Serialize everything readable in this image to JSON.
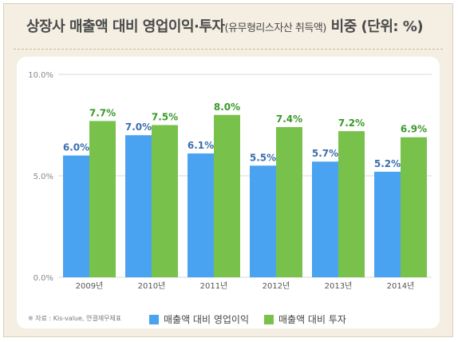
{
  "title": {
    "main": "상장사 매출액 대비 영업이익·투자",
    "paren": "(유무형리스자산 취득액)",
    "tail": " 비중 (단위: %)"
  },
  "colors": {
    "background": "#f4efe2",
    "series_operating": "#4aa3f0",
    "series_investment": "#78c24b",
    "label_operating": "#3c6fb0",
    "label_investment": "#3a9a2a"
  },
  "legend": {
    "note": "※ 자료 : Kis-value, 연결재무제표",
    "items": [
      "매출액 대비 영업이익",
      "매출액 대비 투자"
    ]
  },
  "chart_data": {
    "type": "bar",
    "categories": [
      "2009년",
      "2010년",
      "2011년",
      "2012년",
      "2013년",
      "2014년"
    ],
    "series": [
      {
        "name": "매출액 대비 영업이익",
        "values": [
          6.0,
          7.0,
          6.1,
          5.5,
          5.7,
          5.2
        ]
      },
      {
        "name": "매출액 대비 투자",
        "values": [
          7.7,
          7.5,
          8.0,
          7.4,
          7.2,
          6.9
        ]
      }
    ],
    "data_labels": [
      [
        "6.0%",
        "7.0%",
        "6.1%",
        "5.5%",
        "5.7%",
        "5.2%"
      ],
      [
        "7.7%",
        "7.5%",
        "8.0%",
        "7.4%",
        "7.2%",
        "6.9%"
      ]
    ],
    "yticks": [
      0,
      5,
      10
    ],
    "ytick_labels": [
      "0.0%",
      "5.0%",
      "10.0%"
    ],
    "ylim": [
      0,
      10
    ],
    "grid": true,
    "legend_position": "bottom"
  }
}
